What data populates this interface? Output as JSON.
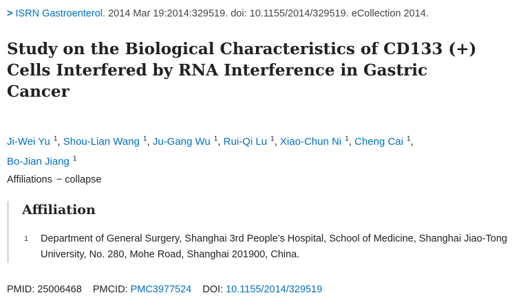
{
  "citation": {
    "chevron": ">",
    "journal": "ISRN Gastroenterol.",
    "details": "2014 Mar 19:2014:329519. doi: 10.1155/2014/329519. eCollection 2014."
  },
  "title": "Study on the Biological Characteristics of CD133 (+) Cells Interfered by RNA Interference in Gastric Cancer",
  "authors": [
    {
      "name": "Ji-Wei Yu",
      "aff": "1"
    },
    {
      "name": "Shou-Lian Wang",
      "aff": "1"
    },
    {
      "name": "Ju-Gang Wu",
      "aff": "1"
    },
    {
      "name": "Rui-Qi Lu",
      "aff": "1"
    },
    {
      "name": "Xiao-Chun Ni",
      "aff": "1"
    },
    {
      "name": "Cheng Cai",
      "aff": "1"
    },
    {
      "name": "Bo-Jian Jiang",
      "aff": "1"
    }
  ],
  "affiliations_toggle": {
    "label": "Affiliations",
    "dash": "−",
    "action": "collapse"
  },
  "affiliation_block": {
    "heading": "Affiliation",
    "items": [
      {
        "num": "1",
        "text": "Department of General Surgery, Shanghai 3rd People's Hospital, School of Medicine, Shanghai Jiao-Tong University, No. 280, Mohe Road, Shanghai 201900, China."
      }
    ]
  },
  "identifiers": {
    "pmid_label": "PMID:",
    "pmid": "25006468",
    "pmcid_label": "PMCID:",
    "pmcid": "PMC3977524",
    "doi_label": "DOI:",
    "doi": "10.1155/2014/329519"
  },
  "colors": {
    "link": "#0071bc",
    "text": "#212121"
  }
}
